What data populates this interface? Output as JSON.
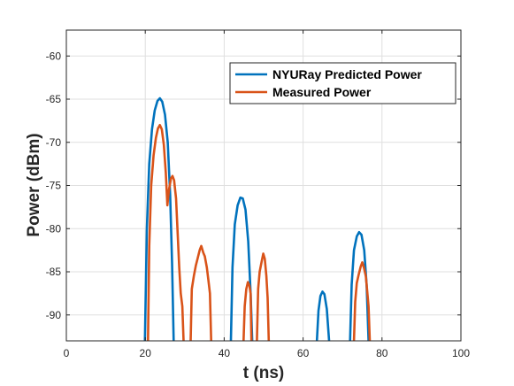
{
  "chart_data": {
    "type": "line",
    "xlabel": "t (ns)",
    "ylabel": "Power (dBm)",
    "xlim": [
      0,
      100
    ],
    "ylim": [
      -93,
      -57
    ],
    "xticks": [
      0,
      20,
      40,
      60,
      80,
      100
    ],
    "yticks": [
      -90,
      -85,
      -80,
      -75,
      -70,
      -65,
      -60
    ],
    "grid": true,
    "legend_position": "top-right",
    "series": [
      {
        "name": "NYURay Predicted Power",
        "color": "#0072BD",
        "segments": [
          [
            [
              19.9,
              -93
            ],
            [
              20.4,
              -80
            ],
            [
              21.0,
              -72.5
            ],
            [
              21.7,
              -68.5
            ],
            [
              22.4,
              -66.3
            ],
            [
              23.1,
              -65.2
            ],
            [
              23.7,
              -64.9
            ],
            [
              24.3,
              -65.3
            ],
            [
              25.0,
              -66.8
            ],
            [
              25.7,
              -70
            ],
            [
              26.3,
              -76
            ],
            [
              26.8,
              -84
            ],
            [
              27.2,
              -93
            ]
          ],
          [
            [
              41.7,
              -93
            ],
            [
              42.1,
              -84.5
            ],
            [
              42.7,
              -79.5
            ],
            [
              43.4,
              -77.3
            ],
            [
              44.1,
              -76.4
            ],
            [
              44.7,
              -76.5
            ],
            [
              45.4,
              -77.8
            ],
            [
              46.1,
              -81.5
            ],
            [
              46.7,
              -87.5
            ],
            [
              47.1,
              -93
            ]
          ],
          [
            [
              63.5,
              -93
            ],
            [
              63.9,
              -89.5
            ],
            [
              64.4,
              -87.8
            ],
            [
              64.9,
              -87.3
            ],
            [
              65.4,
              -87.6
            ],
            [
              66.0,
              -89.3
            ],
            [
              66.6,
              -93
            ]
          ],
          [
            [
              71.9,
              -93
            ],
            [
              72.3,
              -86.5
            ],
            [
              72.9,
              -82.5
            ],
            [
              73.6,
              -80.9
            ],
            [
              74.2,
              -80.4
            ],
            [
              74.8,
              -80.7
            ],
            [
              75.5,
              -82.5
            ],
            [
              76.1,
              -86.5
            ],
            [
              76.6,
              -93
            ]
          ]
        ]
      },
      {
        "name": "Measured Power",
        "color": "#D95319",
        "segments": [
          [
            [
              20.7,
              -93
            ],
            [
              21.0,
              -82
            ],
            [
              21.5,
              -75
            ],
            [
              22.1,
              -71.5
            ],
            [
              22.7,
              -69.5
            ],
            [
              23.2,
              -68.4
            ],
            [
              23.7,
              -68.0
            ],
            [
              24.2,
              -68.5
            ],
            [
              24.7,
              -70.3
            ],
            [
              25.2,
              -73.5
            ],
            [
              25.6,
              -77.3
            ],
            [
              26.0,
              -75.5
            ],
            [
              26.5,
              -74.2
            ],
            [
              26.9,
              -73.9
            ],
            [
              27.3,
              -74.4
            ],
            [
              27.8,
              -76.5
            ],
            [
              28.2,
              -80.5
            ],
            [
              28.6,
              -84.5
            ],
            [
              29.0,
              -87.5
            ],
            [
              29.4,
              -89
            ],
            [
              29.7,
              -93
            ]
          ],
          [
            [
              31.5,
              -93
            ],
            [
              31.8,
              -87
            ],
            [
              32.3,
              -85.5
            ],
            [
              32.8,
              -84.3
            ],
            [
              33.3,
              -83.4
            ],
            [
              33.8,
              -82.5
            ],
            [
              34.2,
              -82.0
            ],
            [
              34.7,
              -82.8
            ],
            [
              35.1,
              -83.2
            ],
            [
              35.6,
              -84.5
            ],
            [
              36.0,
              -86
            ],
            [
              36.4,
              -87.5
            ],
            [
              36.7,
              -93
            ]
          ],
          [
            [
              44.9,
              -93
            ],
            [
              45.2,
              -89
            ],
            [
              45.6,
              -87
            ],
            [
              46.0,
              -86.2
            ],
            [
              46.4,
              -86.6
            ],
            [
              46.7,
              -87.5
            ],
            [
              46.9,
              -93
            ]
          ],
          [
            [
              48.3,
              -93
            ],
            [
              48.6,
              -87
            ],
            [
              49.0,
              -85
            ],
            [
              49.5,
              -83.8
            ],
            [
              49.9,
              -82.9
            ],
            [
              50.3,
              -83.5
            ],
            [
              50.7,
              -85.5
            ],
            [
              51.0,
              -88
            ],
            [
              51.3,
              -93
            ]
          ],
          [
            [
              72.9,
              -93
            ],
            [
              73.2,
              -88.5
            ],
            [
              73.6,
              -86.3
            ],
            [
              74.1,
              -85.3
            ],
            [
              74.6,
              -84.4
            ],
            [
              75.0,
              -83.9
            ],
            [
              75.4,
              -84.5
            ],
            [
              75.9,
              -85.5
            ],
            [
              76.3,
              -87.5
            ],
            [
              76.6,
              -89
            ],
            [
              76.9,
              -93
            ]
          ]
        ]
      }
    ]
  }
}
